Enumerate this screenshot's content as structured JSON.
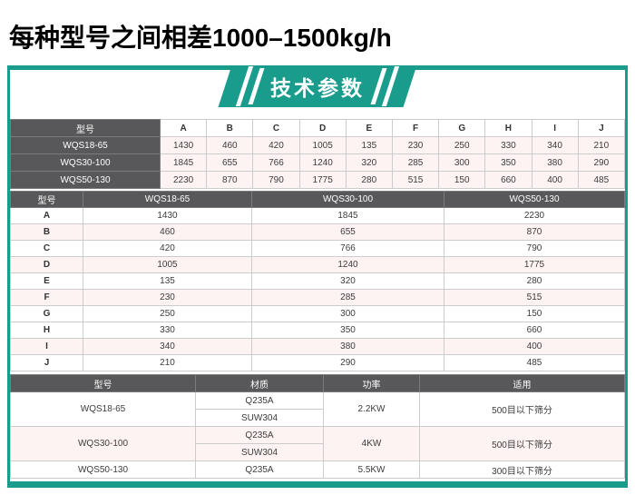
{
  "title": "每种型号之间相差1000–1500kg/h",
  "banner": {
    "label": "技术参数"
  },
  "colors": {
    "accent": "#1a9c8c",
    "header_bg": "#58585a",
    "stripe": "#fdf3f2",
    "border": "#cccccc"
  },
  "table1": {
    "header": [
      "型号",
      "A",
      "B",
      "C",
      "D",
      "E",
      "F",
      "G",
      "H",
      "I",
      "J"
    ],
    "rows": [
      {
        "model": "WQS18-65",
        "values": [
          "1430",
          "460",
          "420",
          "1005",
          "135",
          "230",
          "250",
          "330",
          "340",
          "210"
        ]
      },
      {
        "model": "WQS30-100",
        "values": [
          "1845",
          "655",
          "766",
          "1240",
          "320",
          "285",
          "300",
          "350",
          "380",
          "290"
        ]
      },
      {
        "model": "WQS50-130",
        "values": [
          "2230",
          "870",
          "790",
          "1775",
          "280",
          "515",
          "150",
          "660",
          "400",
          "485"
        ]
      }
    ]
  },
  "table2": {
    "header": [
      "型号",
      "WQS18-65",
      "WQS30-100",
      "WQS50-130"
    ],
    "rows": [
      {
        "param": "A",
        "values": [
          "1430",
          "1845",
          "2230"
        ],
        "shade": false
      },
      {
        "param": "B",
        "values": [
          "460",
          "655",
          "870"
        ],
        "shade": true
      },
      {
        "param": "C",
        "values": [
          "420",
          "766",
          "790"
        ],
        "shade": false
      },
      {
        "param": "D",
        "values": [
          "1005",
          "1240",
          "1775"
        ],
        "shade": true
      },
      {
        "param": "E",
        "values": [
          "135",
          "320",
          "280"
        ],
        "shade": false
      },
      {
        "param": "F",
        "values": [
          "230",
          "285",
          "515"
        ],
        "shade": true
      },
      {
        "param": "G",
        "values": [
          "250",
          "300",
          "150"
        ],
        "shade": false
      },
      {
        "param": "H",
        "values": [
          "330",
          "350",
          "660"
        ],
        "shade": false
      },
      {
        "param": "I",
        "values": [
          "340",
          "380",
          "400"
        ],
        "shade": true
      },
      {
        "param": "J",
        "values": [
          "210",
          "290",
          "485"
        ],
        "shade": false
      }
    ]
  },
  "table3": {
    "header": [
      "型号",
      "材质",
      "功率",
      "适用"
    ],
    "groups": [
      {
        "model": "WQS18-65",
        "materials": [
          "Q235A",
          "SUW304"
        ],
        "power": "2.2KW",
        "application": "500目以下筛分",
        "shade": false
      },
      {
        "model": "WQS30-100",
        "materials": [
          "Q235A",
          "SUW304"
        ],
        "power": "4KW",
        "application": "500目以下筛分",
        "shade": true
      },
      {
        "model": "WQS50-130",
        "materials": [
          "Q235A"
        ],
        "power": "5.5KW",
        "application": "300目以下筛分",
        "shade": false
      }
    ]
  }
}
